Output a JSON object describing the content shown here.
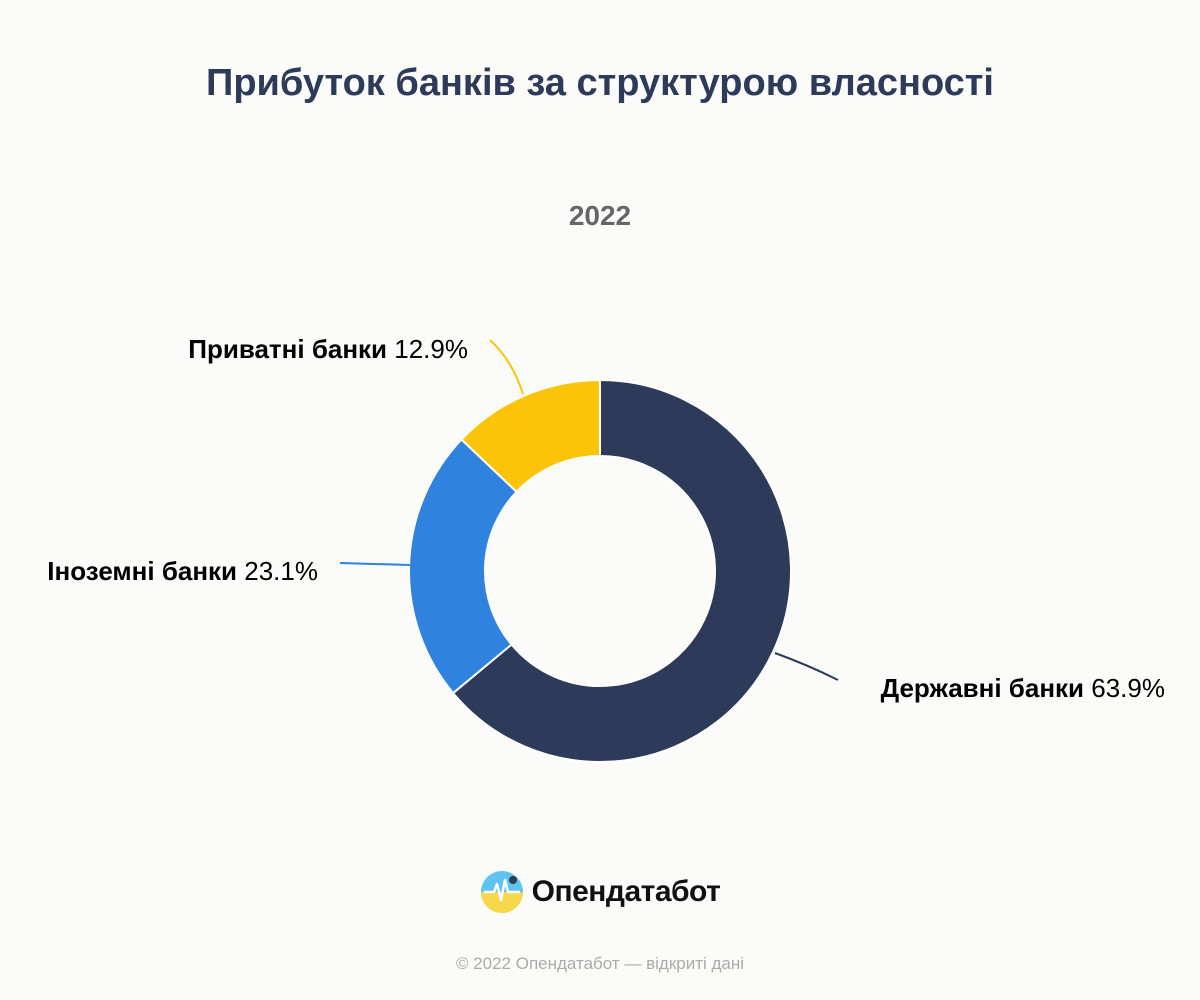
{
  "title": "Прибуток банків за структурою власності",
  "subtitle": "2022",
  "chart_data": {
    "type": "pie",
    "donut": true,
    "title": "Прибуток банків за структурою власності",
    "subtitle": "2022",
    "slices": [
      {
        "name": "Державні банки",
        "value": 63.9,
        "label": "63.9%",
        "color": "#2d3a59"
      },
      {
        "name": "Іноземні банки",
        "value": 23.1,
        "label": "23.1%",
        "color": "#2f83de"
      },
      {
        "name": "Приватні банки",
        "value": 12.9,
        "label": "12.9%",
        "color": "#fbc409"
      }
    ]
  },
  "brand": {
    "name": "Опендатабот",
    "colors": {
      "sky": "#5ec3ef",
      "wheat": "#f7d84a"
    }
  },
  "footer": "© 2022 Опендатабот — відкриті дані"
}
